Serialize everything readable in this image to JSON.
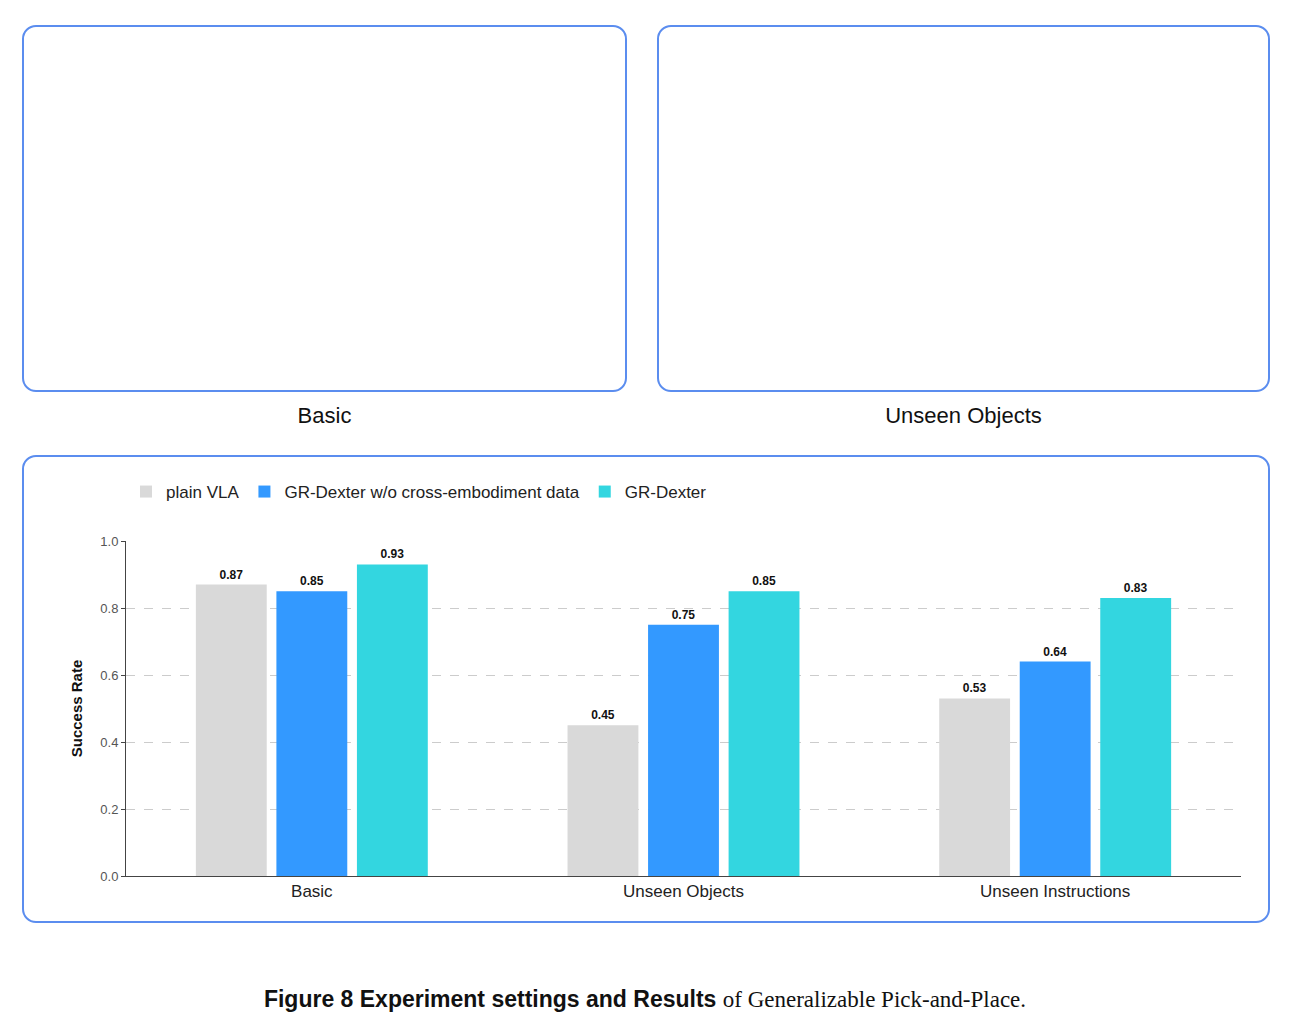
{
  "panels": [
    {
      "label": "Basic"
    },
    {
      "label": "Unseen Objects"
    }
  ],
  "chart_data": {
    "type": "bar",
    "categories": [
      "Basic",
      "Unseen Objects",
      "Unseen Instructions"
    ],
    "series": [
      {
        "name": "plain VLA",
        "color": "#d9d9d9",
        "values": [
          0.87,
          0.45,
          0.53
        ]
      },
      {
        "name": "GR-Dexter w/o cross-embodiment data",
        "color": "#3399ff",
        "values": [
          0.85,
          0.75,
          0.64
        ]
      },
      {
        "name": "GR-Dexter",
        "color": "#33d6e0",
        "values": [
          0.93,
          0.85,
          0.83
        ]
      }
    ],
    "y_label": "Success Rate",
    "ylim": [
      0,
      1.0
    ],
    "yticks": [
      {
        "value": 0,
        "label": "0.0"
      },
      0.2,
      0.4,
      0.6,
      0.8,
      {
        "value": 1.0,
        "label": "1.0"
      }
    ],
    "grid": true,
    "legend": "top-left",
    "data_labels": true
  },
  "caption": {
    "bold": "Figure 8  Experiment settings and Results",
    "text": "of Generalizable Pick-and-Place."
  }
}
